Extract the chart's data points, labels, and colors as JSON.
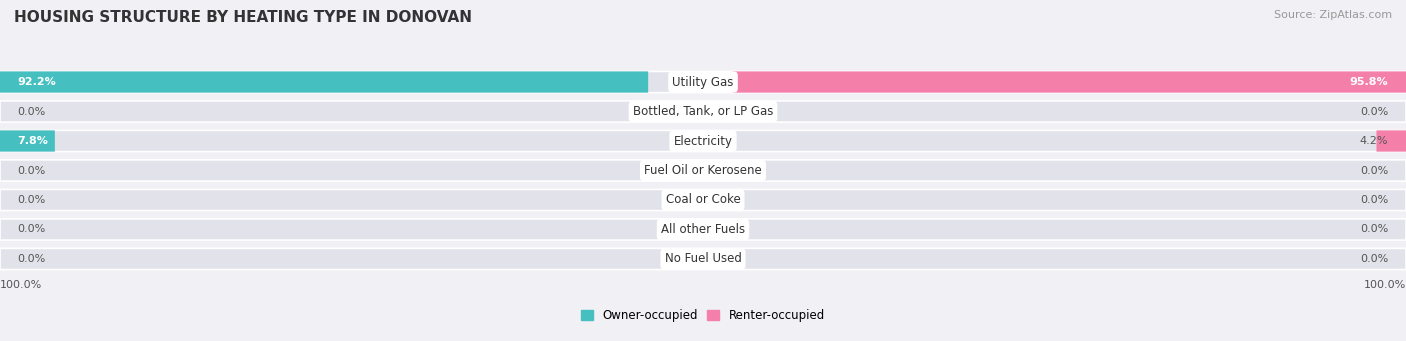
{
  "title": "HOUSING STRUCTURE BY HEATING TYPE IN DONOVAN",
  "source": "Source: ZipAtlas.com",
  "categories": [
    "Utility Gas",
    "Bottled, Tank, or LP Gas",
    "Electricity",
    "Fuel Oil or Kerosene",
    "Coal or Coke",
    "All other Fuels",
    "No Fuel Used"
  ],
  "owner_values": [
    92.2,
    0.0,
    7.8,
    0.0,
    0.0,
    0.0,
    0.0
  ],
  "renter_values": [
    95.8,
    0.0,
    4.2,
    0.0,
    0.0,
    0.0,
    0.0
  ],
  "owner_color": "#45BFBF",
  "renter_color": "#F47FA8",
  "background_color": "#f0f0f5",
  "bar_bg_color": "#e2e2ea",
  "title_color": "#333333",
  "label_color_dark": "#555555",
  "label_color_light": "#ffffff",
  "max_value": 100.0,
  "axis_label_left": "100.0%",
  "axis_label_right": "100.0%",
  "fig_width": 14.06,
  "fig_height": 3.41
}
